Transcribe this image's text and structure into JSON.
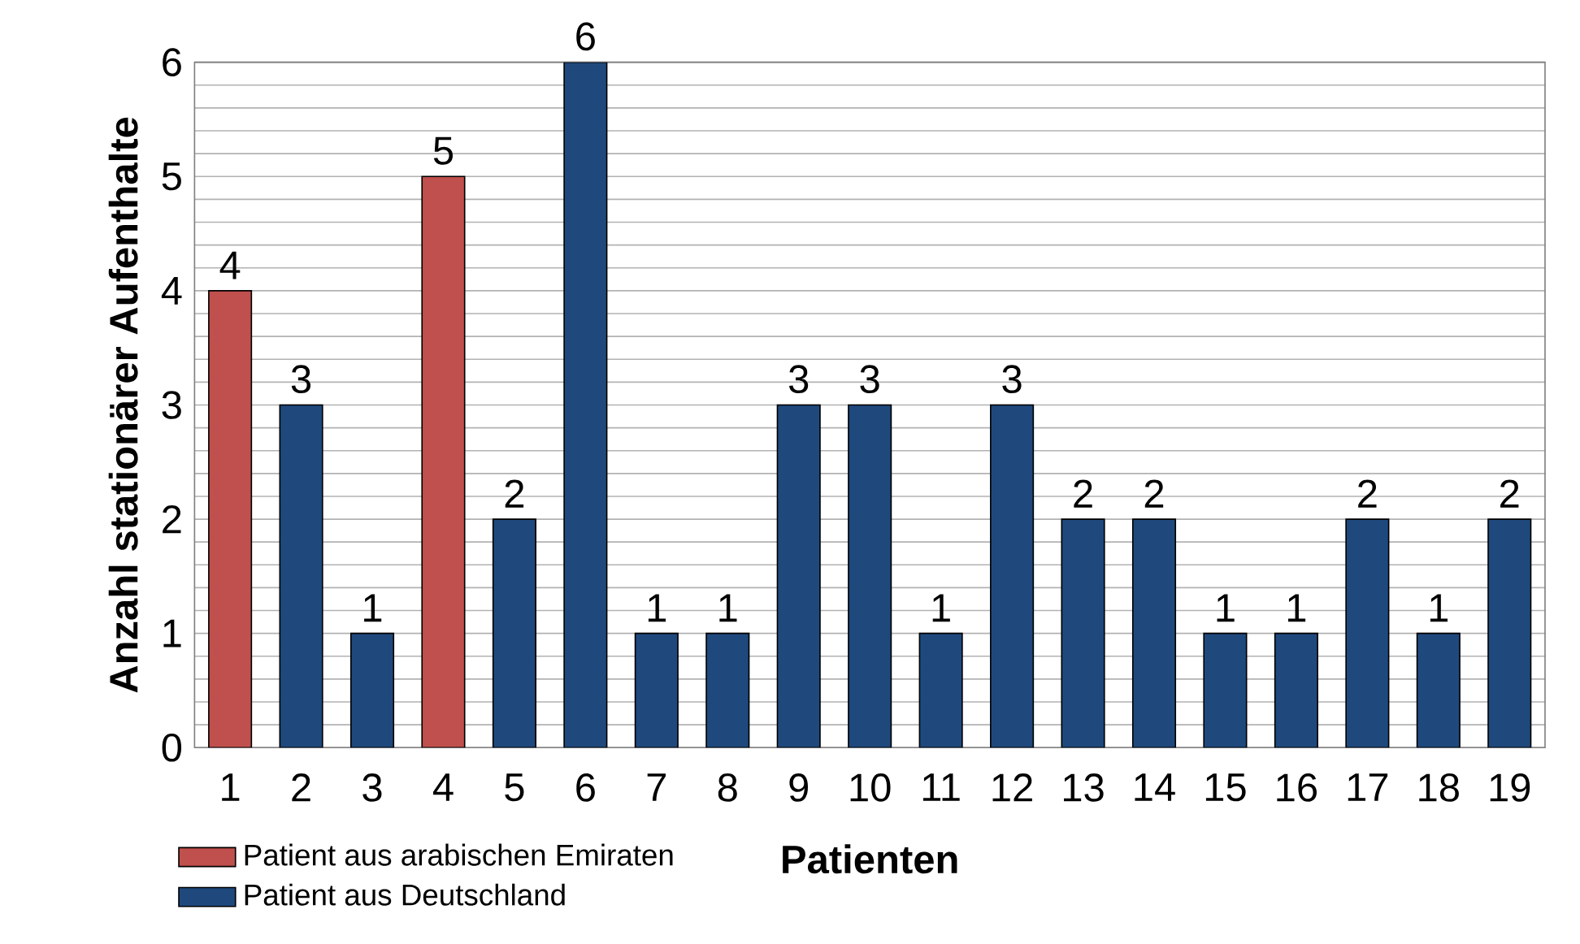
{
  "chart_data": {
    "type": "bar",
    "xlabel": "Patienten",
    "ylabel": "Anzahl stationärer Aufenthalte",
    "categories": [
      "1",
      "2",
      "3",
      "4",
      "5",
      "6",
      "7",
      "8",
      "9",
      "10",
      "11",
      "12",
      "13",
      "14",
      "15",
      "16",
      "17",
      "18",
      "19"
    ],
    "series": [
      {
        "name": "Patient aus arabischen Emiraten",
        "color": "#c0504d",
        "values": [
          4,
          null,
          null,
          5,
          null,
          null,
          null,
          null,
          null,
          null,
          null,
          null,
          null,
          null,
          null,
          null,
          null,
          null,
          null
        ]
      },
      {
        "name": "Patient aus Deutschland",
        "color": "#1f497d",
        "values": [
          null,
          3,
          1,
          null,
          2,
          6,
          1,
          1,
          3,
          3,
          1,
          3,
          2,
          2,
          1,
          1,
          2,
          1,
          2
        ]
      }
    ],
    "ylim": [
      0,
      6
    ],
    "yticks": [
      0,
      1,
      2,
      3,
      4,
      5,
      6
    ],
    "grid": "y",
    "legend": "bottom left",
    "data_labels": true
  }
}
